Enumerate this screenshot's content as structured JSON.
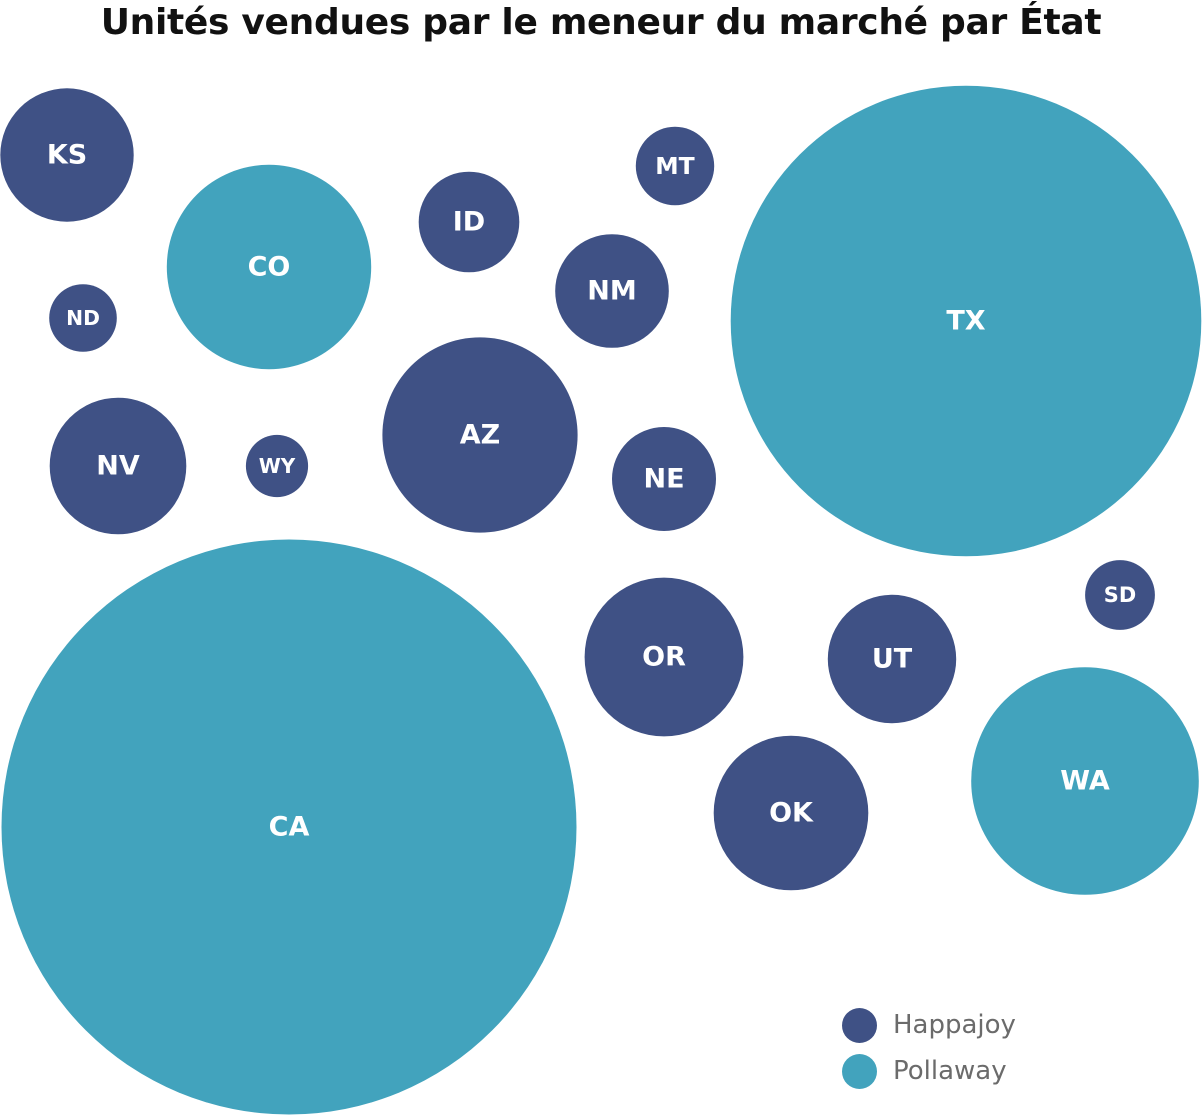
{
  "chart_data": {
    "type": "bubble",
    "title": "Unités vendues par le meneur du marché par État",
    "series": [
      {
        "name": "Happajoy",
        "color": "#3f5185"
      },
      {
        "name": "Pollaway",
        "color": "#42a3bd"
      }
    ],
    "legend_position": "bottom-right",
    "bubbles": [
      {
        "label": "KS",
        "leader": "Happajoy",
        "value": 17.9
      },
      {
        "label": "CO",
        "leader": "Pollaway",
        "value": 42.1
      },
      {
        "label": "ND",
        "leader": "Happajoy",
        "value": 4.6
      },
      {
        "label": "NV",
        "leader": "Happajoy",
        "value": 18.8
      },
      {
        "label": "WY",
        "leader": "Happajoy",
        "value": 3.9
      },
      {
        "label": "ID",
        "leader": "Happajoy",
        "value": 10.2
      },
      {
        "label": "MT",
        "leader": "Happajoy",
        "value": 6.2
      },
      {
        "label": "NM",
        "leader": "Happajoy",
        "value": 13.0
      },
      {
        "label": "AZ",
        "leader": "Happajoy",
        "value": 38.4
      },
      {
        "label": "NE",
        "leader": "Happajoy",
        "value": 10.9
      },
      {
        "label": "TX",
        "leader": "Pollaway",
        "value": 223.0
      },
      {
        "label": "SD",
        "leader": "Happajoy",
        "value": 4.9
      },
      {
        "label": "OR",
        "leader": "Happajoy",
        "value": 25.4
      },
      {
        "label": "UT",
        "leader": "Happajoy",
        "value": 16.6
      },
      {
        "label": "WA",
        "leader": "Pollaway",
        "value": 52.2
      },
      {
        "label": "OK",
        "leader": "Happajoy",
        "value": 24.1
      },
      {
        "label": "CA",
        "leader": "Pollaway",
        "value": 333.0
      }
    ]
  }
}
